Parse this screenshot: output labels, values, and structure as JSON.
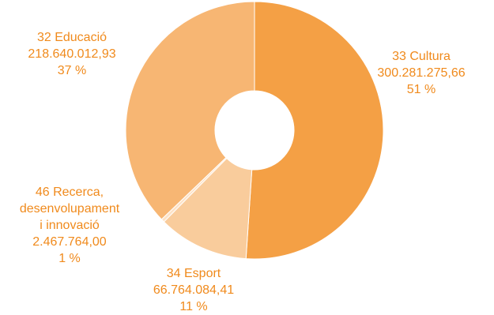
{
  "chart_data": {
    "type": "pie",
    "donut": true,
    "slices": [
      {
        "code": "33",
        "label": "33 Cultura",
        "label_lines": [
          "33 Cultura"
        ],
        "value": 300281275.66,
        "value_text": "300.281.275,66",
        "percent_text": "51 %",
        "color": "#f4a045"
      },
      {
        "code": "34",
        "label": "34 Esport",
        "label_lines": [
          "34 Esport"
        ],
        "value": 66764084.41,
        "value_text": "66.764.084,41",
        "percent_text": "11 %",
        "color": "#f9cc9c"
      },
      {
        "code": "46",
        "label": "46 Recerca, desenvolupament i innovació",
        "label_lines": [
          "46 Recerca,",
          "desenvolupament",
          "i innovació"
        ],
        "value": 2467764.0,
        "value_text": "2.467.764,00",
        "percent_text": "1 %",
        "color": "#fde2c6"
      },
      {
        "code": "32",
        "label": "32 Educació",
        "label_lines": [
          "32 Educació"
        ],
        "value": 218640012.93,
        "value_text": "218.640.012,93",
        "percent_text": "37 %",
        "color": "#f7b673"
      }
    ],
    "start_angle_deg": 0,
    "direction": "clockwise",
    "label_color": "#f08a1c",
    "legend": "none"
  }
}
